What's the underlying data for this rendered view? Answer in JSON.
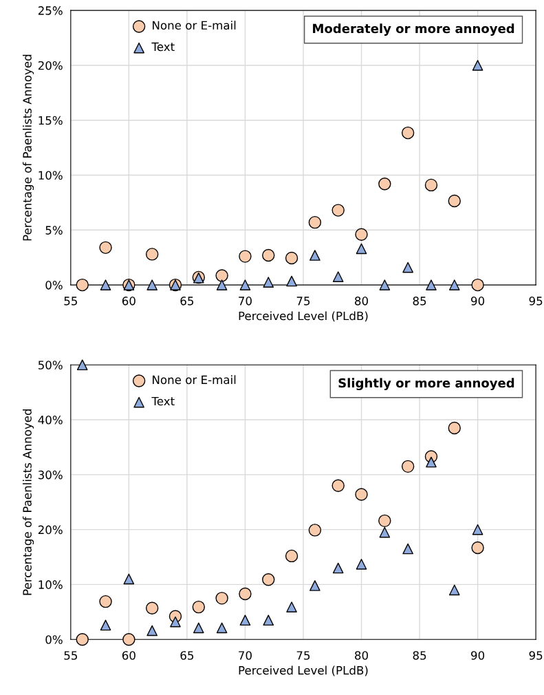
{
  "chart_data": [
    {
      "type": "scatter",
      "title": "Moderately or more annoyed",
      "xlabel": "Perceived Level (PLdB)",
      "ylabel": "Percentage of Paenlists Annoyed",
      "xlim": [
        55,
        95
      ],
      "xticks": [
        55,
        60,
        65,
        70,
        75,
        80,
        85,
        90,
        95
      ],
      "ylim": [
        0,
        25
      ],
      "yticks": [
        {
          "value": 0,
          "label": "0%"
        },
        {
          "value": 5,
          "label": "5%"
        },
        {
          "value": 10,
          "label": "10%"
        },
        {
          "value": 15,
          "label": "15%"
        },
        {
          "value": 20,
          "label": "20%"
        },
        {
          "value": 25,
          "label": "25%"
        }
      ],
      "grid": true,
      "legend": "top left",
      "series": [
        {
          "name": "None or E-mail",
          "color": "#f8cbad",
          "marker": "circle",
          "x": [
            56,
            58,
            60,
            62,
            64,
            66,
            68,
            70,
            72,
            74,
            76,
            78,
            80,
            82,
            84,
            86,
            88,
            90
          ],
          "values": [
            0,
            3.4,
            0,
            2.8,
            0,
            0.7,
            0.85,
            2.6,
            2.7,
            2.45,
            5.7,
            6.8,
            4.6,
            9.2,
            13.85,
            9.1,
            7.65,
            0
          ]
        },
        {
          "name": "Text",
          "color": "#8faadc",
          "marker": "triangle",
          "x": [
            58,
            60,
            62,
            64,
            66,
            68,
            70,
            72,
            74,
            76,
            78,
            80,
            82,
            84,
            86,
            88,
            90
          ],
          "values": [
            0,
            0,
            0,
            0,
            0.65,
            0,
            0,
            0.25,
            0.35,
            2.7,
            0.75,
            3.3,
            0,
            1.6,
            0,
            0,
            20
          ]
        }
      ]
    },
    {
      "type": "scatter",
      "title": "Slightly or more annoyed",
      "xlabel": "Perceived Level (PLdB)",
      "ylabel": "Percentage of Paenlists Annoyed",
      "xlim": [
        55,
        95
      ],
      "xticks": [
        55,
        60,
        65,
        70,
        75,
        80,
        85,
        90,
        95
      ],
      "ylim": [
        0,
        50
      ],
      "yticks": [
        {
          "value": 0,
          "label": "0%"
        },
        {
          "value": 10,
          "label": "10%"
        },
        {
          "value": 20,
          "label": "20%"
        },
        {
          "value": 30,
          "label": "30%"
        },
        {
          "value": 40,
          "label": "40%"
        },
        {
          "value": 50,
          "label": "50%"
        }
      ],
      "grid": true,
      "legend": "top left",
      "series": [
        {
          "name": "None or E-mail",
          "color": "#f8cbad",
          "marker": "circle",
          "x": [
            56,
            58,
            60,
            62,
            64,
            66,
            68,
            70,
            72,
            74,
            76,
            78,
            80,
            82,
            84,
            86,
            88,
            90
          ],
          "values": [
            0,
            6.9,
            0,
            5.7,
            4.2,
            5.9,
            7.5,
            8.3,
            10.9,
            15.2,
            19.9,
            28,
            26.4,
            21.6,
            31.5,
            33.3,
            38.5,
            16.7
          ]
        },
        {
          "name": "Text",
          "color": "#8faadc",
          "marker": "triangle",
          "x": [
            56,
            58,
            60,
            62,
            64,
            66,
            68,
            70,
            72,
            74,
            76,
            78,
            80,
            82,
            84,
            86,
            88,
            90
          ],
          "values": [
            50,
            2.6,
            11,
            1.6,
            3.2,
            2.1,
            2.1,
            3.5,
            3.5,
            5.9,
            9.8,
            13,
            13.7,
            19.5,
            16.5,
            32.3,
            9,
            20
          ]
        }
      ]
    }
  ]
}
